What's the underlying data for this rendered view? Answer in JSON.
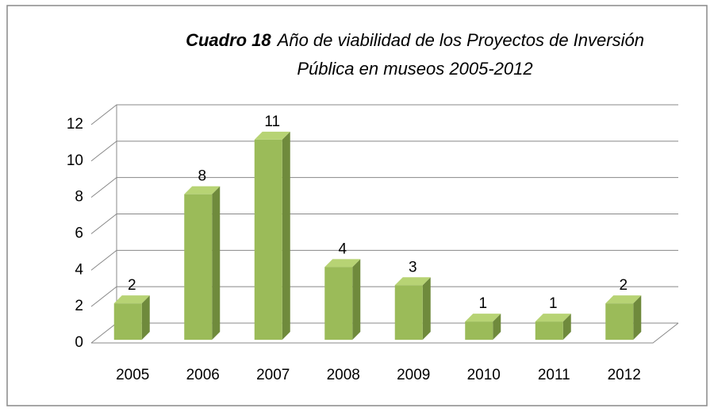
{
  "chart_data": {
    "type": "bar3d",
    "title_label": "Cuadro 18",
    "title_lines": [
      "Año de viabilidad de los Proyectos de Inversión",
      "Pública en museos 2005-2012"
    ],
    "categories": [
      "2005",
      "2006",
      "2007",
      "2008",
      "2009",
      "2010",
      "2011",
      "2012"
    ],
    "values": [
      2,
      8,
      11,
      4,
      3,
      1,
      1,
      2
    ],
    "color": "#9bbb59",
    "ylim": [
      0,
      12
    ],
    "yticks": [
      0,
      2,
      4,
      6,
      8,
      10,
      12
    ],
    "grid": true
  }
}
